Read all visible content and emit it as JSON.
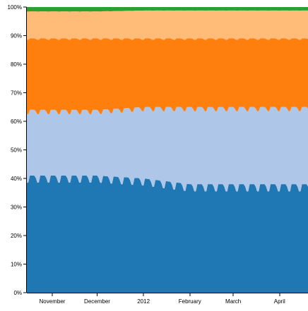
{
  "chart_data": {
    "type": "area",
    "stacking": "percent",
    "title": "",
    "xlabel": "",
    "ylabel": "",
    "ylim": [
      0,
      100
    ],
    "grid": false,
    "legend": "none",
    "x_range": [
      "2011-10-15",
      "2012-04-20"
    ],
    "x_ticks": [
      {
        "date": "2011-11-01",
        "label": "November"
      },
      {
        "date": "2011-12-01",
        "label": "December"
      },
      {
        "date": "2012-01-01",
        "label": "2012"
      },
      {
        "date": "2012-02-01",
        "label": "February"
      },
      {
        "date": "2012-03-01",
        "label": "March"
      },
      {
        "date": "2012-04-01",
        "label": "April"
      }
    ],
    "y_ticks": [
      "0%",
      "10%",
      "20%",
      "30%",
      "40%",
      "50%",
      "60%",
      "70%",
      "80%",
      "90%",
      "100%"
    ],
    "series": [
      {
        "color": "#1f77b4",
        "x": [
          "2011-10-15",
          "2011-11-01",
          "2011-12-01",
          "2012-01-01",
          "2012-02-01",
          "2012-03-01",
          "2012-04-01",
          "2012-04-20"
        ],
        "values": [
          41,
          41,
          41,
          40,
          38,
          38,
          38,
          38
        ],
        "weekly_dip": 4
      },
      {
        "color": "#aec7e8",
        "x": [
          "2011-10-15",
          "2011-11-01",
          "2011-12-01",
          "2012-01-01",
          "2012-02-01",
          "2012-03-01",
          "2012-04-01",
          "2012-04-20"
        ],
        "values": [
          23,
          23,
          23,
          25,
          27,
          27,
          27,
          27
        ],
        "weekly_dip": 0
      },
      {
        "color": "#ff7f0e",
        "x": [
          "2011-10-15",
          "2011-11-01",
          "2011-12-01",
          "2012-01-01",
          "2012-02-01",
          "2012-03-01",
          "2012-04-01",
          "2012-04-20"
        ],
        "values": [
          25,
          25,
          25,
          24,
          24,
          24,
          24,
          24
        ],
        "weekly_dip": 0
      },
      {
        "color": "#ffbb78",
        "x": [
          "2011-10-15",
          "2011-11-01",
          "2011-12-01",
          "2012-01-01",
          "2012-02-01",
          "2012-03-01",
          "2012-04-01",
          "2012-04-20"
        ],
        "values": [
          9.5,
          9.5,
          9.5,
          9.8,
          9.8,
          9.8,
          9.8,
          9.8
        ],
        "weekly_dip": 0
      },
      {
        "color": "#2ca02c",
        "x": [
          "2011-10-15",
          "2011-11-01",
          "2011-12-01",
          "2012-01-01",
          "2012-02-01",
          "2012-03-01",
          "2012-04-01",
          "2012-04-20"
        ],
        "values": [
          1.5,
          1.5,
          1.5,
          1.2,
          1.2,
          1.2,
          1.2,
          1.2
        ],
        "weekly_dip": 0
      }
    ]
  }
}
